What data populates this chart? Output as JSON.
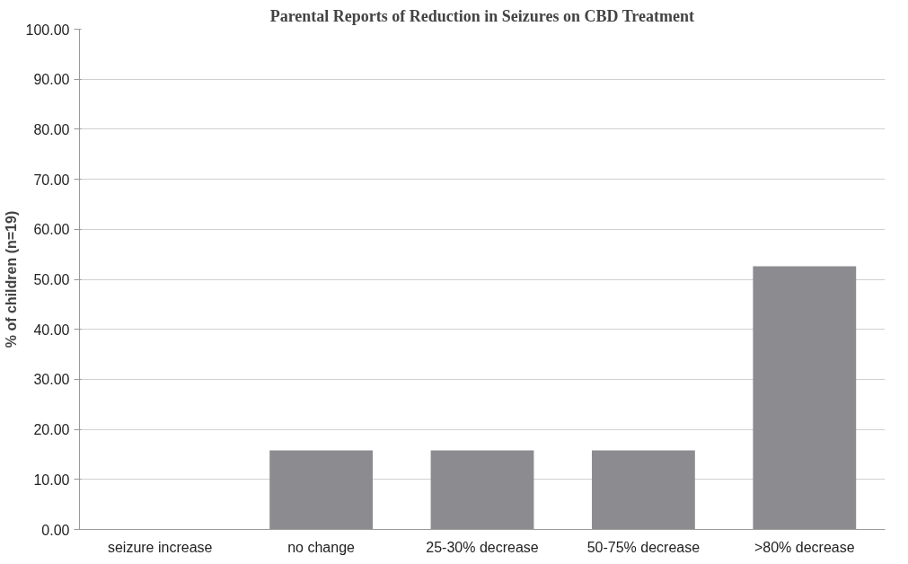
{
  "chart_data": {
    "type": "bar",
    "title": "Parental Reports of Reduction in Seizures on CBD Treatment",
    "ylabel": "% of children (n=19)",
    "categories": [
      "seizure increase",
      "no change",
      "25-30% decrease",
      "50-75% decrease",
      ">80% decrease"
    ],
    "values": [
      0,
      15.8,
      15.8,
      15.8,
      52.6
    ],
    "color": "#8c8c90",
    "ylim": [
      0,
      100
    ],
    "yticks": [
      {
        "value": 0,
        "label": "0.00"
      },
      {
        "value": 10,
        "label": "10.00"
      },
      {
        "value": 20,
        "label": "20.00"
      },
      {
        "value": 30,
        "label": "30.00"
      },
      {
        "value": 40,
        "label": "40.00"
      },
      {
        "value": 50,
        "label": "50.00"
      },
      {
        "value": 60,
        "label": "60.00"
      },
      {
        "value": 70,
        "label": "70.00"
      },
      {
        "value": 80,
        "label": "80.00"
      },
      {
        "value": 90,
        "label": "90.00"
      },
      {
        "value": 100,
        "label": "100.00"
      }
    ],
    "grid": "y"
  }
}
